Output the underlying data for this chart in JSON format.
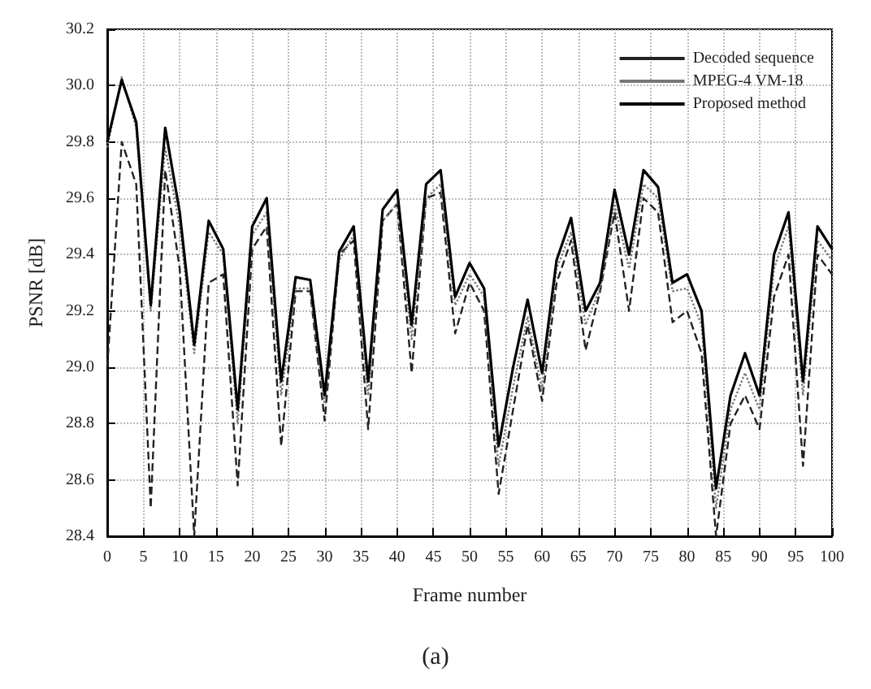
{
  "chart_data": {
    "type": "line",
    "xlabel": "Frame number",
    "ylabel": "PSNR [dB]",
    "annotations": [
      "(a)"
    ],
    "x": [
      0,
      2,
      4,
      6,
      8,
      10,
      12,
      14,
      16,
      18,
      20,
      22,
      24,
      26,
      28,
      30,
      32,
      34,
      36,
      38,
      40,
      42,
      44,
      46,
      48,
      50,
      52,
      54,
      56,
      58,
      60,
      62,
      64,
      66,
      68,
      70,
      72,
      74,
      76,
      78,
      80,
      82,
      84,
      86,
      88,
      90,
      92,
      94,
      96,
      98,
      100
    ],
    "series": [
      {
        "name": "Decoded sequence",
        "color": "#222222",
        "line_style": "dashed",
        "values": [
          29.0,
          29.8,
          29.65,
          28.5,
          29.7,
          29.35,
          28.4,
          29.3,
          29.33,
          28.58,
          29.42,
          29.5,
          28.72,
          29.27,
          29.27,
          28.81,
          29.4,
          29.45,
          28.78,
          29.52,
          29.58,
          28.98,
          29.6,
          29.62,
          29.12,
          29.3,
          29.2,
          28.55,
          28.85,
          29.15,
          28.88,
          29.3,
          29.45,
          29.06,
          29.27,
          29.55,
          29.2,
          29.6,
          29.55,
          29.16,
          29.2,
          29.05,
          28.4,
          28.8,
          28.9,
          28.78,
          29.25,
          29.4,
          28.65,
          29.4,
          29.33
        ]
      },
      {
        "name": "MPEG-4 VM-18",
        "color": "#777777",
        "line_style": "dotted",
        "values": [
          29.78,
          30.03,
          29.85,
          29.2,
          29.78,
          29.5,
          29.05,
          29.48,
          29.4,
          28.8,
          29.47,
          29.55,
          28.9,
          29.28,
          29.28,
          28.87,
          29.38,
          29.47,
          28.9,
          29.52,
          29.58,
          29.1,
          29.6,
          29.65,
          29.22,
          29.33,
          29.25,
          28.65,
          28.93,
          29.18,
          28.92,
          29.35,
          29.48,
          29.15,
          29.28,
          29.58,
          29.35,
          29.65,
          29.6,
          29.27,
          29.28,
          29.15,
          28.5,
          28.85,
          28.98,
          28.85,
          29.35,
          29.5,
          28.9,
          29.45,
          29.38
        ]
      },
      {
        "name": "Proposed method",
        "color": "#000000",
        "line_style": "solid",
        "values": [
          29.8,
          30.02,
          29.87,
          29.22,
          29.85,
          29.55,
          29.08,
          29.52,
          29.42,
          28.85,
          29.5,
          29.6,
          28.95,
          29.32,
          29.31,
          28.9,
          29.41,
          29.5,
          28.95,
          29.56,
          29.63,
          29.15,
          29.65,
          29.7,
          29.25,
          29.37,
          29.28,
          28.72,
          29.0,
          29.24,
          28.98,
          29.38,
          29.53,
          29.2,
          29.3,
          29.63,
          29.4,
          29.7,
          29.64,
          29.3,
          29.33,
          29.2,
          28.57,
          28.9,
          29.05,
          28.9,
          29.4,
          29.55,
          28.95,
          29.5,
          29.42
        ]
      }
    ],
    "xlim": [
      0,
      100
    ],
    "xticks": [
      0,
      5,
      10,
      15,
      20,
      25,
      30,
      35,
      40,
      45,
      50,
      55,
      60,
      65,
      70,
      75,
      80,
      85,
      90,
      95,
      100
    ],
    "ylim": [
      28.4,
      30.2
    ],
    "yticks": [
      {
        "value": 28.4,
        "label": "28.4"
      },
      {
        "value": 28.6,
        "label": "28.6"
      },
      {
        "value": 28.8,
        "label": "28.8"
      },
      {
        "value": 29.0,
        "label": "29.0"
      },
      {
        "value": 29.2,
        "label": "29.2"
      },
      {
        "value": 29.4,
        "label": "29.4"
      },
      {
        "value": 29.6,
        "label": "29.6"
      },
      {
        "value": 29.8,
        "label": "29.8"
      },
      {
        "value": 30.0,
        "label": "30.0"
      },
      {
        "value": 30.2,
        "label": "30.2"
      }
    ],
    "grid": true,
    "legend": "top right",
    "marker": "none"
  }
}
